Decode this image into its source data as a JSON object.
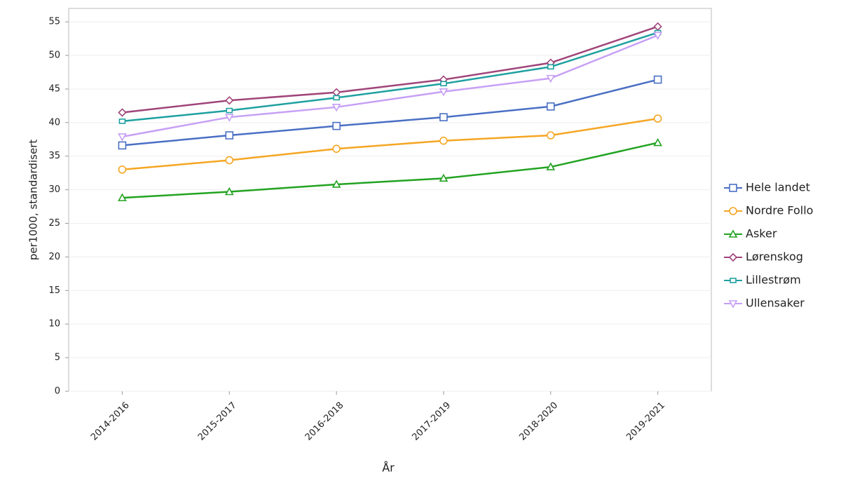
{
  "chart_data": {
    "type": "line",
    "x_label": "År",
    "y_label": "per1000, standardisert",
    "categories": [
      "2014-2016",
      "2015-2017",
      "2016-2018",
      "2017-2019",
      "2018-2020",
      "2019-2021"
    ],
    "ylim": [
      0,
      57
    ],
    "yticks": [
      0,
      5,
      10,
      15,
      20,
      25,
      30,
      35,
      40,
      45,
      50,
      55
    ],
    "grid": true,
    "legend": "right",
    "series": [
      {
        "name": "Hele landet",
        "color": "#4a6fc4",
        "marker": "square",
        "values": [
          36.6,
          38.1,
          39.5,
          40.8,
          42.4,
          46.4
        ]
      },
      {
        "name": "Nordre Follo",
        "color": "#f5a623",
        "marker": "circle",
        "values": [
          33.0,
          34.4,
          36.1,
          37.3,
          38.1,
          40.6
        ]
      },
      {
        "name": "Asker",
        "color": "#22a322",
        "marker": "triangle",
        "values": [
          28.8,
          29.7,
          30.8,
          31.7,
          33.4,
          37.0
        ]
      },
      {
        "name": "Lørenskog",
        "color": "#a0457a",
        "marker": "diamond",
        "values": [
          41.5,
          43.3,
          44.5,
          46.4,
          48.9,
          54.3
        ]
      },
      {
        "name": "Lillestrøm",
        "color": "#1fa0a0",
        "marker": "small-square",
        "values": [
          40.2,
          41.8,
          43.7,
          45.8,
          48.3,
          53.4
        ]
      },
      {
        "name": "Ullensaker",
        "color": "#c7a0f5",
        "marker": "triangle-down",
        "values": [
          37.9,
          40.8,
          42.3,
          44.6,
          46.6,
          53.0
        ]
      }
    ]
  }
}
